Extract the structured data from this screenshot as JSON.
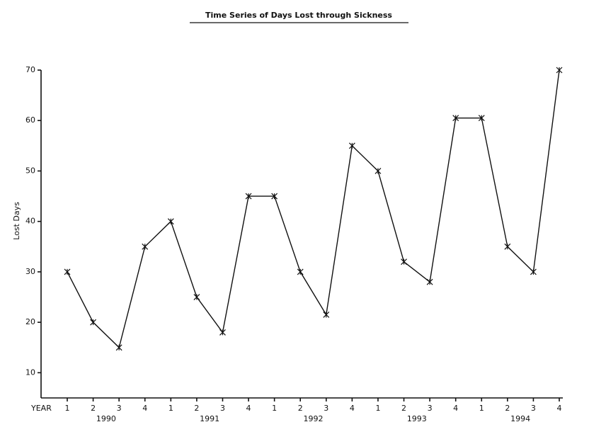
{
  "chart_data": {
    "type": "line",
    "title": "Time Series of Days Lost through Sickness",
    "x_label": "YEAR",
    "y_label": "Lost Days",
    "categories": [
      "1",
      "2",
      "3",
      "4",
      "1",
      "2",
      "3",
      "4",
      "1",
      "2",
      "3",
      "4",
      "1",
      "2",
      "3",
      "4",
      "1",
      "2",
      "3",
      "4"
    ],
    "groups": [
      "1990",
      "1991",
      "1992",
      "1993",
      "1994"
    ],
    "series": [
      {
        "name": "Lost Days",
        "color": "#111111",
        "values": [
          30,
          20,
          15,
          35,
          40,
          25,
          18,
          45,
          45,
          30,
          21.5,
          55,
          50,
          32,
          28,
          60.5,
          60.5,
          35,
          30,
          70
        ]
      }
    ],
    "marker": "x",
    "ylim": [
      5,
      70
    ],
    "yticks": [
      10,
      20,
      30,
      40,
      50,
      60,
      70
    ]
  }
}
